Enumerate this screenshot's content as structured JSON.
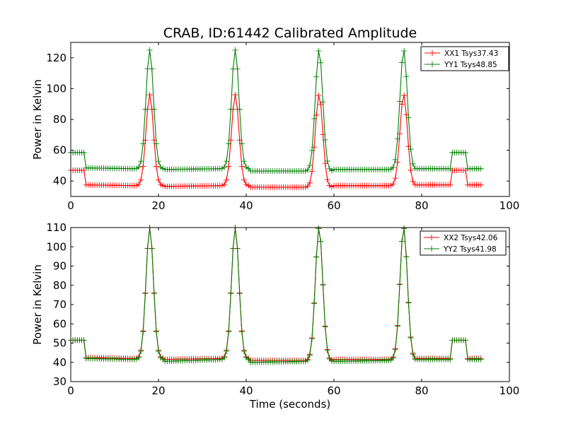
{
  "page": {
    "title": "CRAB, ID:61442 Calibrated Amplitude",
    "xlabel": "Time (seconds)"
  },
  "chart_data": [
    {
      "type": "line",
      "title": "CRAB, ID:61442 Calibrated Amplitude",
      "xlabel": "",
      "ylabel": "Power in Kelvin",
      "xlim": [
        0,
        100
      ],
      "ylim": [
        30,
        130
      ],
      "xticks": [
        0,
        20,
        40,
        60,
        80,
        100
      ],
      "yticks": [
        40,
        60,
        80,
        100,
        120
      ],
      "grid": false,
      "legend_position": "top-right",
      "marker": "plus",
      "series": [
        {
          "name": "XX1 Tsys37.43",
          "color": "#ff0000",
          "baseline_segments": [
            [
              3.5,
              15.0,
              37.5,
              37.0
            ],
            [
              21.0,
              34.0,
              36.5,
              37.0
            ],
            [
              40.5,
              54.0,
              36.0,
              36.0
            ],
            [
              59.5,
              73.0,
              37.0,
              37.0
            ],
            [
              79.5,
              86.5,
              37.5,
              37.5
            ]
          ],
          "peaks": [
            [
              18.0,
              96.0
            ],
            [
              37.5,
              96.0
            ],
            [
              56.6,
              96.0
            ],
            [
              75.9,
              96.0
            ]
          ],
          "cal_steps": [
            [
              0.0,
              3.0,
              47.0
            ],
            [
              87.0,
              90.0,
              47.0
            ]
          ],
          "x_end": 93.5,
          "tail_level": 37.5
        },
        {
          "name": "YY1 Tsys48.85",
          "color": "#007f00",
          "baseline_segments": [
            [
              3.5,
              15.0,
              48.5,
              48.0
            ],
            [
              21.0,
              34.0,
              47.5,
              48.0
            ],
            [
              40.5,
              54.0,
              46.5,
              46.5
            ],
            [
              59.5,
              73.0,
              47.5,
              47.5
            ],
            [
              79.5,
              86.5,
              48.0,
              48.0
            ]
          ],
          "peaks": [
            [
              18.0,
              125.0
            ],
            [
              37.5,
              125.0
            ],
            [
              56.6,
              125.0
            ],
            [
              75.9,
              125.0
            ]
          ],
          "cal_steps": [
            [
              0.0,
              3.0,
              58.5
            ],
            [
              87.0,
              90.0,
              58.5
            ]
          ],
          "x_end": 93.5,
          "tail_level": 48.0
        }
      ]
    },
    {
      "type": "line",
      "title": "",
      "xlabel": "Time (seconds)",
      "ylabel": "Power in Kelvin",
      "xlim": [
        0,
        100
      ],
      "ylim": [
        30,
        110
      ],
      "xticks": [
        0,
        20,
        40,
        60,
        80,
        100
      ],
      "yticks": [
        30,
        40,
        50,
        60,
        70,
        80,
        90,
        100,
        110
      ],
      "grid": false,
      "legend_position": "top-right",
      "marker": "plus",
      "series": [
        {
          "name": "XX2 Tsys42.06",
          "color": "#ff0000",
          "baseline_segments": [
            [
              3.5,
              15.0,
              42.5,
              42.0
            ],
            [
              21.0,
              34.0,
              41.5,
              42.0
            ],
            [
              40.5,
              54.0,
              41.0,
              41.0
            ],
            [
              59.5,
              73.0,
              41.5,
              41.5
            ],
            [
              79.5,
              86.5,
              42.0,
              42.0
            ]
          ],
          "peaks": [
            [
              18.0,
              110.0
            ],
            [
              37.5,
              110.0
            ],
            [
              56.6,
              110.0
            ],
            [
              75.9,
              110.0
            ]
          ],
          "cal_steps": [
            [
              0.0,
              3.0,
              51.5
            ],
            [
              87.0,
              90.0,
              51.5
            ]
          ],
          "x_end": 93.5,
          "tail_level": 42.0
        },
        {
          "name": "YY2 Tsys41.98",
          "color": "#007f00",
          "baseline_segments": [
            [
              3.5,
              15.0,
              42.0,
              41.5
            ],
            [
              21.0,
              34.0,
              40.5,
              41.5
            ],
            [
              40.5,
              54.0,
              40.0,
              40.5
            ],
            [
              59.5,
              73.0,
              40.5,
              41.0
            ],
            [
              79.5,
              86.5,
              41.5,
              41.5
            ]
          ],
          "peaks": [
            [
              18.0,
              110.0
            ],
            [
              37.5,
              110.0
            ],
            [
              56.6,
              110.0
            ],
            [
              75.9,
              110.0
            ]
          ],
          "cal_steps": [
            [
              0.0,
              3.0,
              51.5
            ],
            [
              87.0,
              90.0,
              51.5
            ]
          ],
          "x_end": 93.5,
          "tail_level": 41.5
        }
      ]
    }
  ]
}
